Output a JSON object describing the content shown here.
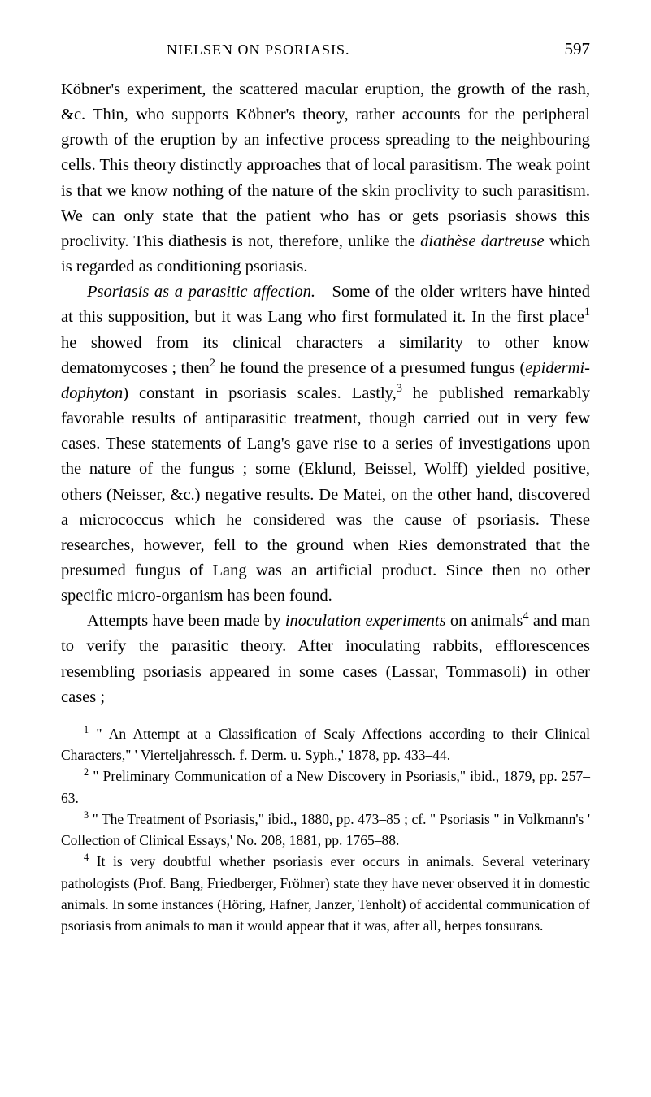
{
  "header": {
    "running_title": "NIELSEN ON PSORIASIS.",
    "page_number": "597"
  },
  "paragraphs": {
    "p1": "Köbner's experiment, the scattered macular eruption, the growth of the rash, &c. Thin, who supports Köbner's theory, rather accounts for the peripheral growth of the eruption by an infective process spreading to the neighbouring cells. This theory distinctly approaches that of local parasitism. The weak point is that we know nothing of the nature of the skin proclivity to such parasitism. We can only state that the patient who has or gets psoriasis shows this proclivity. This diathesis is not, therefore, unlike the ",
    "p1_italic": "diathèse dartreuse",
    "p1_end": " which is regarded as conditioning psoriasis.",
    "p2_italic": "Psoriasis as a parasitic affection.",
    "p2a": "—Some of the older writers have hinted at this supposition, but it was Lang who first formulated it. In the first place",
    "p2_sup1": "1",
    "p2b": " he showed from its clinical characters a similarity to other know dematomycoses ; then",
    "p2_sup2": "2",
    "p2c": " he found the presence of a presumed fungus (",
    "p2_italic2": "epidermi-dophyton",
    "p2d": ") constant in psoriasis scales. Lastly,",
    "p2_sup3": "3",
    "p2e": " he published remarkably favorable results of antiparasitic treatment, though carried out in very few cases. These statements of Lang's gave rise to a series of investigations upon the nature of the fungus ; some (Eklund, Beissel, Wolff) yielded positive, others (Neisser, &c.) negative results. De Matei, on the other hand, discovered a micrococcus which he considered was the cause of psoriasis. These researches, however, fell to the ground when Ries demonstrated that the presumed fungus of Lang was an artificial product. Since then no other specific micro-organism has been found.",
    "p3a": "Attempts have been made by ",
    "p3_italic": "inoculation experiments",
    "p3b": " on animals",
    "p3_sup4": "4",
    "p3c": " and man to verify the parasitic theory. After inoculating rabbits, efflorescences resembling psoriasis appeared in some cases (Lassar, Tommasoli) in other cases ;"
  },
  "footnotes": {
    "fn1_sup": "1",
    "fn1": " \" An Attempt at a Classification of Scaly Affections according to their Clinical Characters,\" ' Vierteljahressch. f. Derm. u. Syph.,' 1878, pp. 433–44.",
    "fn2_sup": "2",
    "fn2": " \" Preliminary Communication of a New Discovery in Psoriasis,\" ibid., 1879, pp. 257–63.",
    "fn3_sup": "3",
    "fn3": " \" The Treatment of Psoriasis,\" ibid., 1880, pp. 473–85 ; cf. \" Psoriasis \" in Volkmann's ' Collection of Clinical Essays,' No. 208, 1881, pp. 1765–88.",
    "fn4_sup": "4",
    "fn4": " It is very doubtful whether psoriasis ever occurs in animals. Several veterinary pathologists (Prof. Bang, Friedberger, Fröhner) state they have never observed it in domestic animals. In some instances (Höring, Hafner, Janzer, Tenholt) of accidental communication of psoriasis from animals to man it would appear that it was, after all, herpes tonsurans."
  }
}
